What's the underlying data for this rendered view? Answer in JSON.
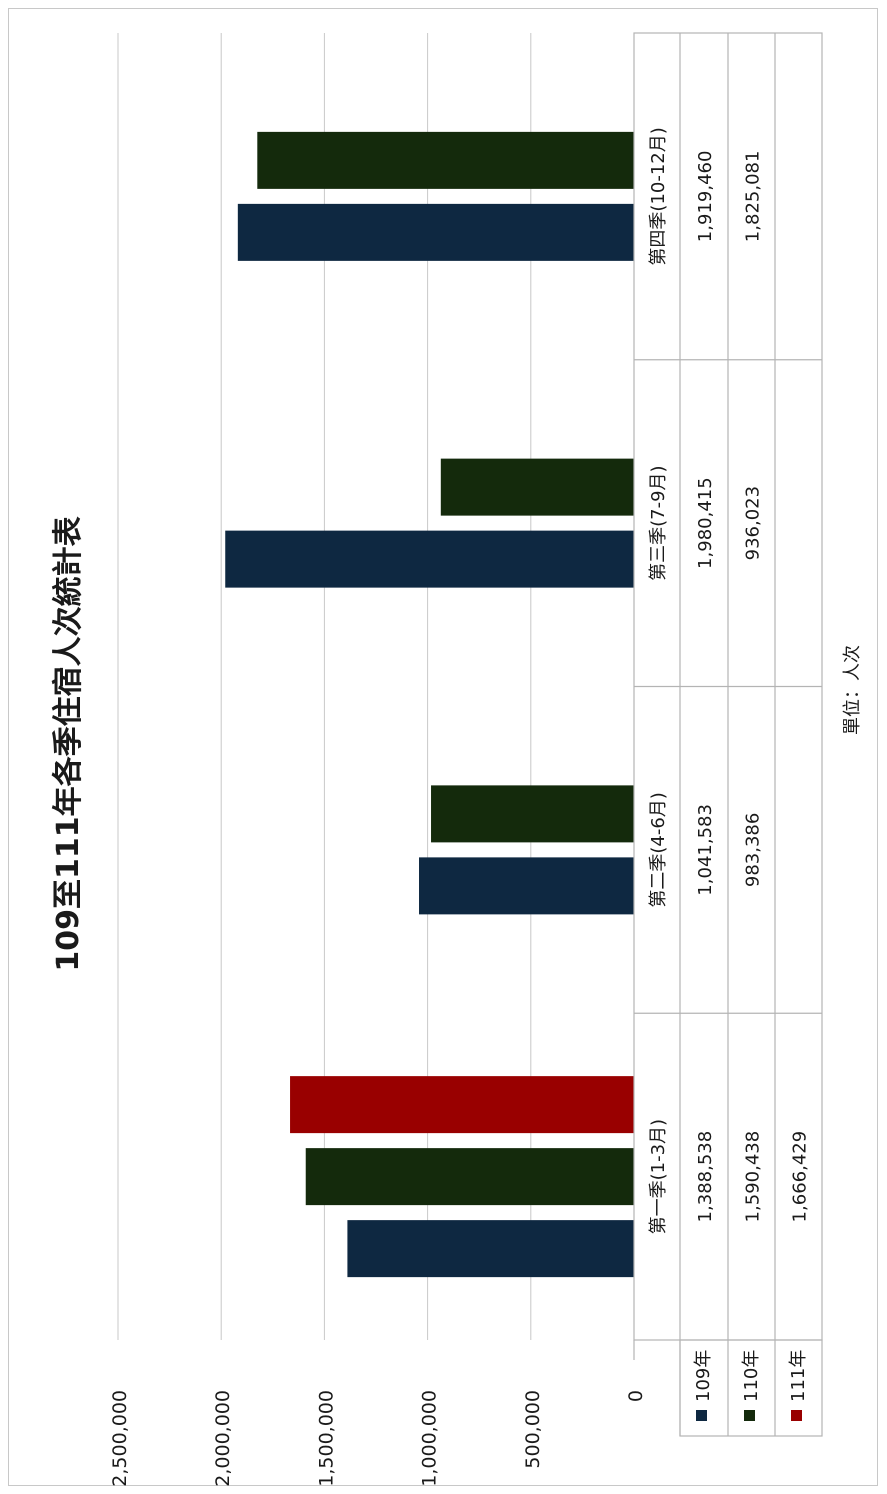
{
  "chart_data": {
    "type": "bar",
    "title": "109至111年各季住宿人次統計表",
    "unit_note": "單位：人次",
    "categories": [
      "第一季(1-3月)",
      "第二季(4-6月)",
      "第三季(7-9月)",
      "第四季(10-12月)"
    ],
    "series": [
      {
        "name": "109年",
        "color": "#0e2841",
        "values": [
          1388538,
          1041583,
          1980415,
          1919460
        ],
        "labels": [
          "1,388,538",
          "1,041,583",
          "1,980,415",
          "1,919,460"
        ]
      },
      {
        "name": "110年",
        "color": "#142a0c",
        "values": [
          1590438,
          983386,
          936023,
          1825081
        ],
        "labels": [
          "1,590,438",
          "983,386",
          "936,023",
          "1,825,081"
        ]
      },
      {
        "name": "111年",
        "color": "#990000",
        "values": [
          1666429,
          null,
          null,
          null
        ],
        "labels": [
          "1,666,429",
          "",
          "",
          ""
        ]
      }
    ],
    "ylim": [
      0,
      2500000
    ],
    "y_ticks": [
      0,
      500000,
      1000000,
      1500000,
      2000000,
      2500000
    ],
    "y_tick_labels": [
      "0",
      "500,000",
      "1,000,000",
      "1,500,000",
      "2,000,000",
      "2,500,000"
    ],
    "grid": true,
    "legend": "data-table",
    "orientation": "rotated-90-clockwise"
  }
}
